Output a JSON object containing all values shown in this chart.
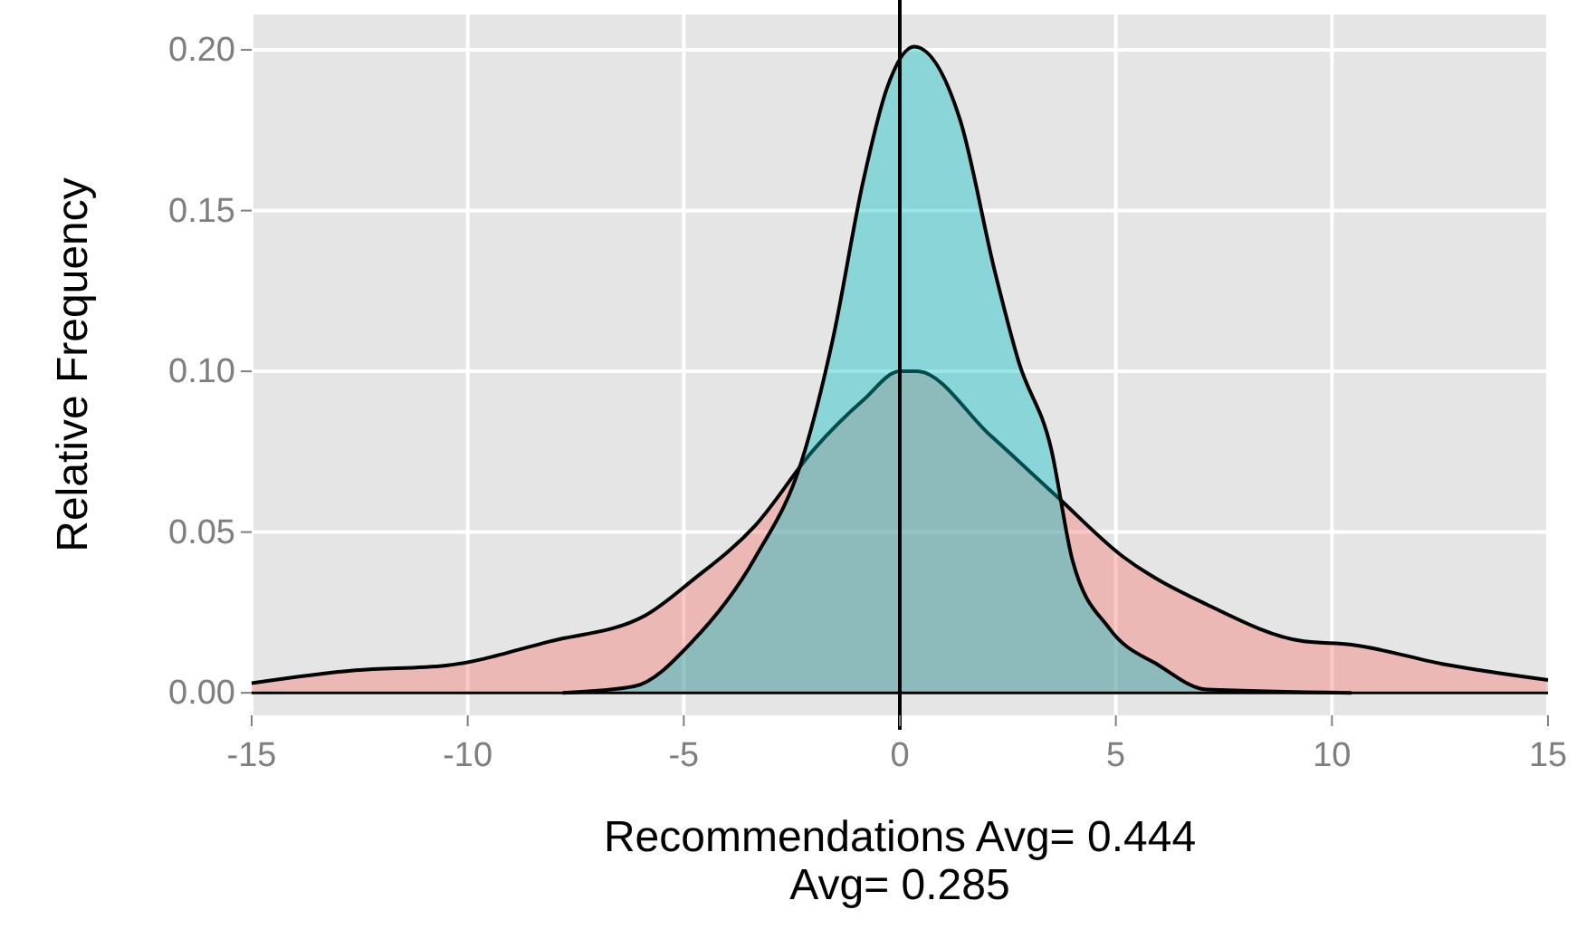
{
  "chart_data": {
    "type": "area",
    "xlabel": "Recommendations Avg= 0.444\nAvg= 0.285",
    "ylabel": "Relative Frequency",
    "xlim": [
      -15,
      15
    ],
    "ylim": [
      -0.007,
      0.211
    ],
    "xticks": [
      -15,
      -10,
      -5,
      0,
      5,
      10,
      15
    ],
    "yticks": [
      {
        "value": 0,
        "label": "0.00"
      },
      {
        "value": 0.05,
        "label": "0.05"
      },
      {
        "value": 0.1,
        "label": "0.10"
      },
      {
        "value": 0.15,
        "label": "0.15"
      },
      {
        "value": 0.2,
        "label": "0.20"
      }
    ],
    "grid": true,
    "ref_lines": [
      {
        "axis": "x",
        "value": 0,
        "color": "#000000"
      }
    ],
    "series": [
      {
        "color": "#f8766d",
        "x": [
          -15,
          -12.6,
          -10.5,
          -8.1,
          -5.9,
          -4.8,
          -3.35,
          -1.97,
          -0.85,
          0,
          0.4,
          2.1,
          3.6,
          5.15,
          7.1,
          9.35,
          10.45,
          12.55,
          15
        ],
        "values": [
          0.003,
          0.007,
          0.0085,
          0.016,
          0.024,
          0.035,
          0.052,
          0.076,
          0.091,
          0.1,
          0.1,
          0.08,
          0.0615,
          0.0425,
          0.0275,
          0.016,
          0.015,
          0.009,
          0.004
        ]
      },
      {
        "color": "#00bfc4",
        "x": [
          -7.8,
          -6.15,
          -4.8,
          -3.35,
          -2.25,
          -1.55,
          -0.85,
          -0.3,
          0.33,
          1.4,
          2.2,
          2.75,
          3.5,
          4.0,
          4.85,
          6.0,
          7.1,
          10.45
        ],
        "values": [
          0,
          0.002,
          0.016,
          0.042,
          0.073,
          0.11,
          0.159,
          0.188,
          0.201,
          0.178,
          0.131,
          0.103,
          0.076,
          0.041,
          0.02,
          0.0085,
          0.001,
          0
        ]
      }
    ]
  }
}
